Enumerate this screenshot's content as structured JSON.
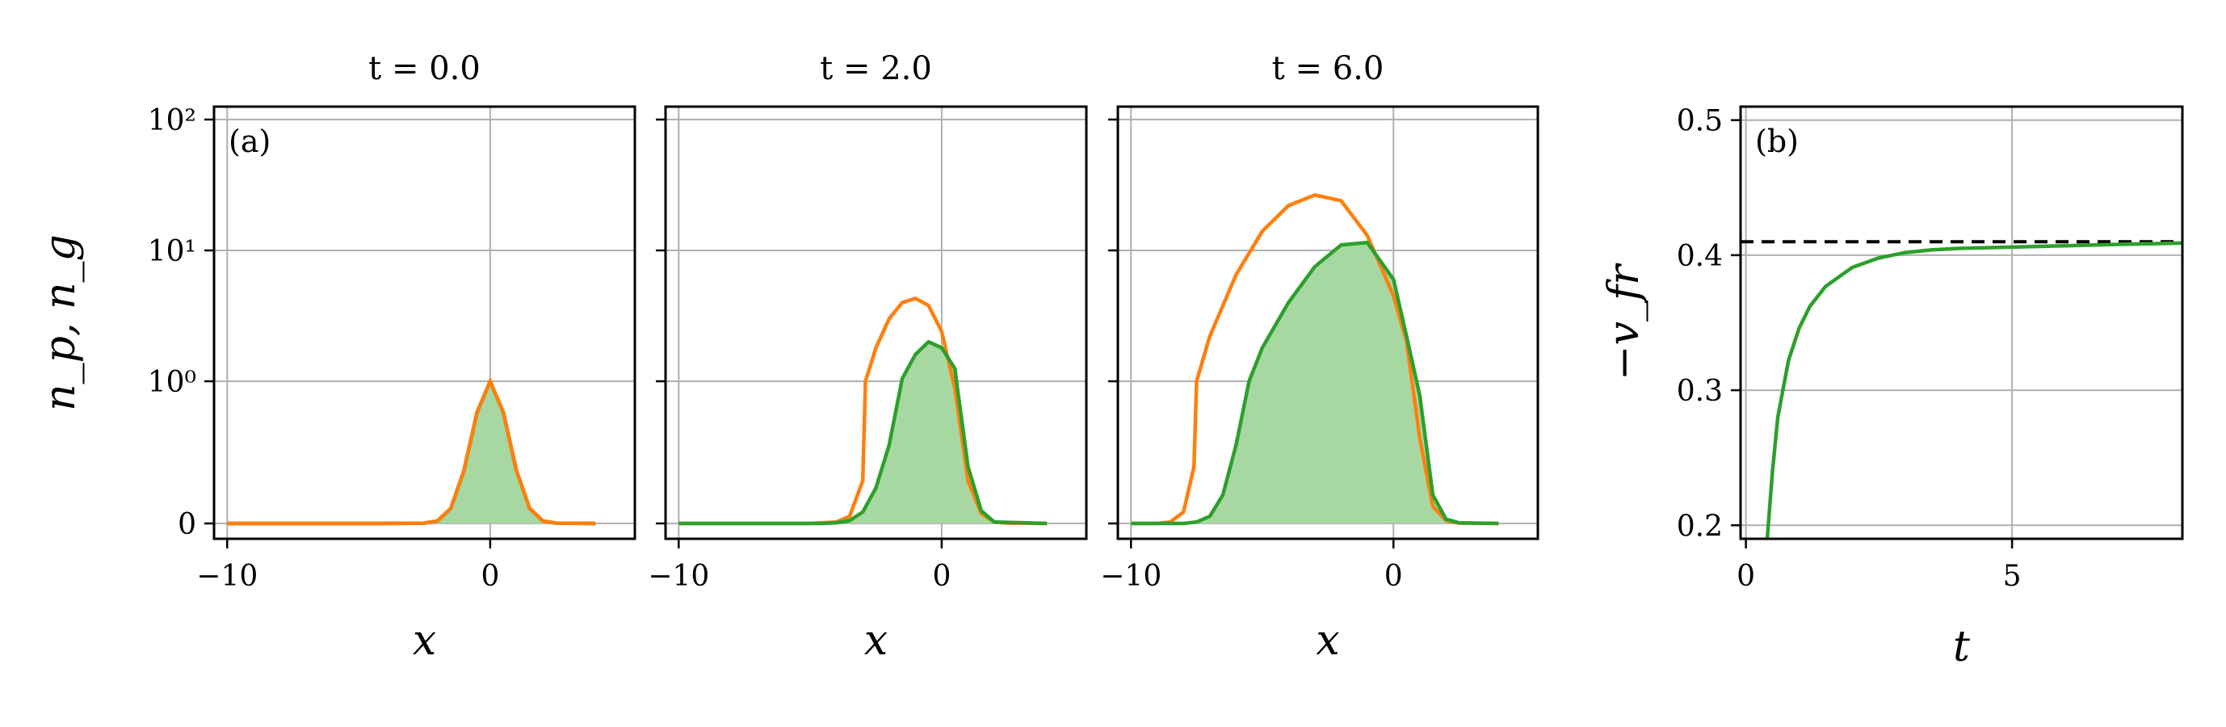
{
  "figure": {
    "colors": {
      "orange": "#ff7f0e",
      "green": "#2ca02c",
      "fill": "#a8d8a2",
      "grid": "#b0b0b0",
      "dashed": "#000000"
    }
  },
  "chart_data": [
    {
      "type": "line",
      "panel_tag": "(a)",
      "title": "t = 0.0",
      "xlabel": "x",
      "ylabel": "n_p, n_g",
      "xlim": [
        -10.5,
        5.5
      ],
      "yscale": "symlog",
      "xticks": [
        "−10",
        "0"
      ],
      "yticks": [
        "0",
        "10⁰",
        "10¹",
        "10²"
      ],
      "grid": true,
      "series": [
        {
          "color": "orange",
          "kind": "line",
          "x": [
            -10,
            -4,
            -2.5,
            -2,
            -1.5,
            -1,
            -0.5,
            0,
            0.5,
            1,
            1.5,
            2,
            2.5,
            4
          ],
          "y": [
            0,
            0,
            0.002,
            0.018,
            0.105,
            0.37,
            0.78,
            1.0,
            0.78,
            0.37,
            0.105,
            0.018,
            0.002,
            0
          ]
        },
        {
          "color": "green",
          "kind": "area",
          "x": [
            -10,
            -4,
            -2.5,
            -2,
            -1.5,
            -1,
            -0.5,
            0,
            0.5,
            1,
            1.5,
            2,
            2.5,
            4
          ],
          "y": [
            0,
            0,
            0.002,
            0.018,
            0.105,
            0.37,
            0.78,
            1.0,
            0.78,
            0.37,
            0.105,
            0.018,
            0.002,
            0
          ]
        }
      ]
    },
    {
      "type": "line",
      "title": "t = 2.0",
      "xlabel": "x",
      "xlim": [
        -10.5,
        5.5
      ],
      "yscale": "symlog",
      "xticks": [
        "−10",
        "0"
      ],
      "grid": true,
      "series": [
        {
          "color": "orange",
          "kind": "line",
          "x": [
            -10,
            -5,
            -4,
            -3.5,
            -3,
            -2.9,
            -2.5,
            -2,
            -1.5,
            -1,
            -0.5,
            0,
            0.5,
            1,
            1.5,
            2,
            2.5,
            4
          ],
          "y": [
            0,
            0,
            0.01,
            0.05,
            0.3,
            1.0,
            1.8,
            3.0,
            4.0,
            4.3,
            3.8,
            2.4,
            0.95,
            0.3,
            0.07,
            0.01,
            0.002,
            0
          ]
        },
        {
          "color": "green",
          "kind": "area",
          "x": [
            -10,
            -4.5,
            -4,
            -3.5,
            -3,
            -2.5,
            -2,
            -1.5,
            -1,
            -0.5,
            0,
            0.5,
            0.6,
            1,
            1.5,
            2,
            4
          ],
          "y": [
            0,
            0,
            0.005,
            0.02,
            0.08,
            0.25,
            0.55,
            1.05,
            1.6,
            2.0,
            1.8,
            1.25,
            0.95,
            0.4,
            0.09,
            0.01,
            0
          ]
        }
      ]
    },
    {
      "type": "line",
      "title": "t = 6.0",
      "xlabel": "x",
      "xlim": [
        -10.5,
        5.5
      ],
      "yscale": "symlog",
      "xticks": [
        "−10",
        "0"
      ],
      "grid": true,
      "series": [
        {
          "color": "orange",
          "kind": "line",
          "x": [
            -10,
            -9,
            -8.5,
            -8,
            -7.6,
            -7.5,
            -7,
            -6,
            -5,
            -4,
            -3,
            -2,
            -1,
            0,
            0.5,
            1,
            1.5,
            2,
            2.5,
            4
          ],
          "y": [
            0,
            0,
            0.01,
            0.08,
            0.4,
            1.0,
            2.2,
            6.5,
            14.0,
            22.0,
            26.5,
            24.0,
            13.0,
            4.5,
            2.0,
            0.6,
            0.12,
            0.02,
            0.003,
            0
          ]
        },
        {
          "color": "green",
          "kind": "area",
          "x": [
            -10,
            -8,
            -7.5,
            -7,
            -6.5,
            -6,
            -5.5,
            -5,
            -4,
            -3,
            -2,
            -1,
            0,
            0.5,
            1,
            1.5,
            2,
            2.5,
            4
          ],
          "y": [
            0,
            0,
            0.01,
            0.05,
            0.2,
            0.55,
            1.0,
            1.8,
            4.0,
            7.5,
            11.0,
            11.5,
            6.0,
            2.2,
            0.9,
            0.2,
            0.03,
            0.004,
            0
          ]
        }
      ]
    },
    {
      "type": "line",
      "panel_tag": "(b)",
      "xlabel": "t",
      "ylabel": "−v_fr",
      "xlim": [
        -0.1,
        8.2
      ],
      "ylim": [
        0.19,
        0.51
      ],
      "xticks": [
        "0",
        "5"
      ],
      "yticks": [
        "0.2",
        "0.3",
        "0.4",
        "0.5"
      ],
      "grid": true,
      "reference_line": {
        "y": 0.41,
        "style": "dashed"
      },
      "series": [
        {
          "color": "green",
          "kind": "line",
          "x": [
            0.4,
            0.5,
            0.6,
            0.8,
            1.0,
            1.2,
            1.5,
            2.0,
            2.5,
            3.0,
            3.5,
            4.0,
            5.0,
            6.0,
            7.0,
            8.2
          ],
          "y": [
            0.19,
            0.24,
            0.28,
            0.322,
            0.346,
            0.362,
            0.377,
            0.391,
            0.398,
            0.402,
            0.404,
            0.405,
            0.406,
            0.407,
            0.408,
            0.409
          ]
        }
      ]
    }
  ],
  "tick_values": {
    "symlog_y": [
      0,
      1,
      10,
      100
    ],
    "panel_x": [
      -10,
      0
    ],
    "panel_b_x": [
      0,
      5
    ],
    "panel_b_y": [
      0.2,
      0.3,
      0.4,
      0.5
    ]
  }
}
